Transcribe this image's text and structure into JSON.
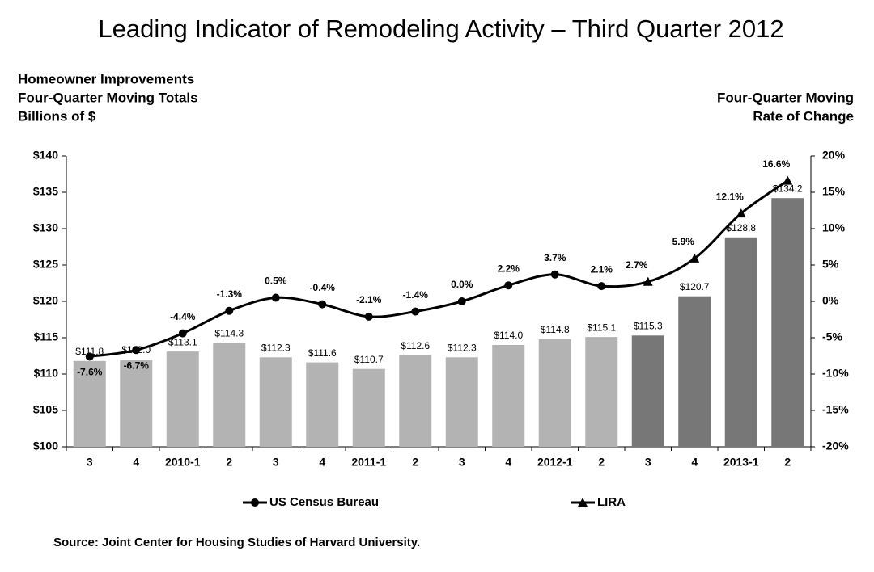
{
  "chart_data": {
    "type": "bar-line",
    "title": "Leading Indicator of Remodeling Activity – Third Quarter 2012",
    "y_label": [
      "Homeowner Improvements",
      "Four-Quarter Moving Totals",
      "Billions of $"
    ],
    "y2_label": [
      "Four-Quarter Moving",
      "Rate of Change"
    ],
    "source": "Source: Joint Center for Housing Studies of Harvard University.",
    "categories": [
      "3",
      "4",
      "2010-1",
      "2",
      "3",
      "4",
      "2011-1",
      "2",
      "3",
      "4",
      "2012-1",
      "2",
      "3",
      "4",
      "2013-1",
      "2"
    ],
    "bars": {
      "values": [
        111.8,
        112.0,
        113.1,
        114.3,
        112.3,
        111.6,
        110.7,
        112.6,
        112.3,
        114.0,
        114.8,
        115.1,
        115.3,
        120.7,
        128.8,
        134.2
      ],
      "value_labels": [
        "$111.8",
        "$112.0",
        "$113.1",
        "$114.3",
        "$112.3",
        "$111.6",
        "$110.7",
        "$112.6",
        "$112.3",
        "$114.0",
        "$114.8",
        "$115.1",
        "$115.3",
        "$120.7",
        "$128.8",
        "$134.2"
      ],
      "colors": [
        "#b3b3b3",
        "#b3b3b3",
        "#b3b3b3",
        "#b3b3b3",
        "#b3b3b3",
        "#b3b3b3",
        "#b3b3b3",
        "#b3b3b3",
        "#b3b3b3",
        "#b3b3b3",
        "#b3b3b3",
        "#b3b3b3",
        "#777777",
        "#777777",
        "#777777",
        "#777777"
      ]
    },
    "series": [
      {
        "name": "US Census Bureau",
        "marker": "circle",
        "color": "#000000",
        "axis": "y2",
        "values": [
          -7.6,
          -6.7,
          -4.4,
          -1.3,
          0.5,
          -0.4,
          -2.1,
          -1.4,
          0.0,
          2.2,
          3.7,
          2.1,
          null,
          null,
          null,
          null
        ],
        "value_labels": [
          "-7.6%",
          "-6.7%",
          "-4.4%",
          "-1.3%",
          "0.5%",
          "-0.4%",
          "-2.1%",
          "-1.4%",
          "0.0%",
          "2.2%",
          "3.7%",
          "2.1%",
          null,
          null,
          null,
          null
        ]
      },
      {
        "name": "LIRA",
        "marker": "triangle",
        "color": "#000000",
        "axis": "y2",
        "values": [
          null,
          null,
          null,
          null,
          null,
          null,
          null,
          null,
          null,
          null,
          null,
          null,
          2.7,
          5.9,
          12.1,
          16.6
        ],
        "value_labels": [
          null,
          null,
          null,
          null,
          null,
          null,
          null,
          null,
          null,
          null,
          null,
          null,
          "2.7%",
          "5.9%",
          "12.1%",
          "16.6%"
        ]
      }
    ],
    "ylim": [
      100,
      140
    ],
    "yticks": [
      {
        "value": 100,
        "label": "$100"
      },
      {
        "value": 105,
        "label": "$105"
      },
      {
        "value": 110,
        "label": "$110"
      },
      {
        "value": 115,
        "label": "$115"
      },
      {
        "value": 120,
        "label": "$120"
      },
      {
        "value": 125,
        "label": "$125"
      },
      {
        "value": 130,
        "label": "$130"
      },
      {
        "value": 135,
        "label": "$135"
      },
      {
        "value": 140,
        "label": "$140"
      }
    ],
    "y2lim": [
      -20,
      20
    ],
    "y2ticks": [
      {
        "value": -20,
        "label": "-20%"
      },
      {
        "value": -15,
        "label": "-15%"
      },
      {
        "value": -10,
        "label": "-10%"
      },
      {
        "value": -5,
        "label": "-5%"
      },
      {
        "value": 0,
        "label": "0%"
      },
      {
        "value": 5,
        "label": "5%"
      },
      {
        "value": 10,
        "label": "10%"
      },
      {
        "value": 15,
        "label": "15%"
      },
      {
        "value": 20,
        "label": "20%"
      }
    ]
  }
}
